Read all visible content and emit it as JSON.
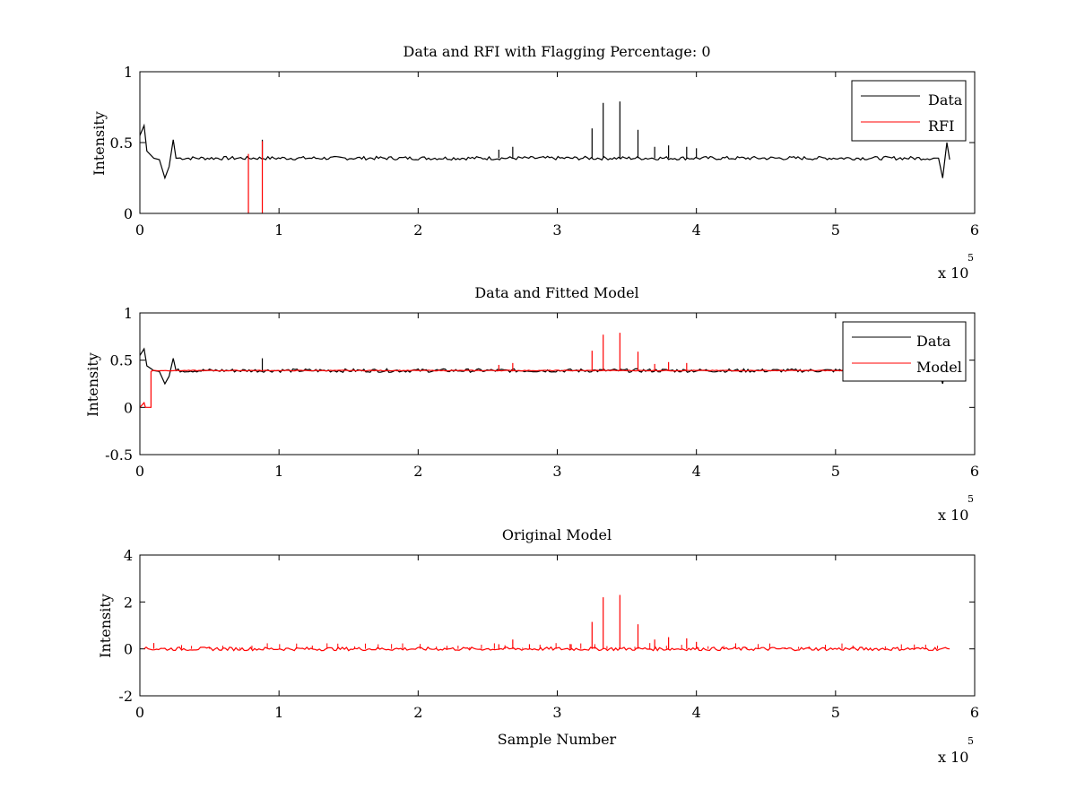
{
  "colors": {
    "data": "#000000",
    "rfi": "#ff0000",
    "model": "#ff0000",
    "axes": "#000000",
    "background": "#ffffff"
  },
  "chart_data": [
    {
      "type": "line",
      "title": "Data and RFI with Flagging Percentage: 0",
      "xlabel": "",
      "ylabel": "Intensity",
      "xlim": [
        0,
        600000
      ],
      "ylim": [
        0,
        1
      ],
      "xticks": [
        0,
        100000,
        200000,
        300000,
        400000,
        500000,
        600000
      ],
      "xtick_labels": [
        "0",
        "1",
        "2",
        "3",
        "4",
        "5",
        "6"
      ],
      "yticks": [
        0,
        0.5,
        1
      ],
      "ytick_labels": [
        "0",
        "0.5",
        "1"
      ],
      "x_multiplier": {
        "base": "x 10",
        "exponent": "5"
      },
      "legend": {
        "position": "top-right",
        "entries": [
          "Data",
          "RFI"
        ]
      },
      "series": [
        {
          "name": "Data",
          "color": "#000000",
          "baseline": 0.39,
          "features": [
            {
              "x": 0,
              "y": 0.55
            },
            {
              "x": 3000,
              "y": 0.62
            },
            {
              "x": 5000,
              "y": 0.44
            },
            {
              "x": 10000,
              "y": 0.39
            },
            {
              "x": 14000,
              "y": 0.38
            },
            {
              "x": 18000,
              "y": 0.25
            },
            {
              "x": 21000,
              "y": 0.33
            },
            {
              "x": 24000,
              "y": 0.52
            },
            {
              "x": 26000,
              "y": 0.39
            },
            {
              "x": 574000,
              "y": 0.39
            },
            {
              "x": 577000,
              "y": 0.25
            },
            {
              "x": 580000,
              "y": 0.5
            },
            {
              "x": 582000,
              "y": 0.38
            }
          ],
          "spikes": [
            {
              "x": 88000,
              "y": 0.52
            },
            {
              "x": 258000,
              "y": 0.45
            },
            {
              "x": 268000,
              "y": 0.47
            },
            {
              "x": 325000,
              "y": 0.6
            },
            {
              "x": 333000,
              "y": 0.78
            },
            {
              "x": 345000,
              "y": 0.79
            },
            {
              "x": 358000,
              "y": 0.59
            },
            {
              "x": 370000,
              "y": 0.47
            },
            {
              "x": 380000,
              "y": 0.48
            },
            {
              "x": 393000,
              "y": 0.47
            },
            {
              "x": 400000,
              "y": 0.46
            }
          ]
        },
        {
          "name": "RFI",
          "color": "#ff0000",
          "spikes": [
            {
              "x": 88000,
              "y": 0.51
            },
            {
              "x": 78000,
              "y": 0.42
            }
          ]
        }
      ]
    },
    {
      "type": "line",
      "title": "Data and Fitted Model",
      "xlabel": "",
      "ylabel": "Intensity",
      "xlim": [
        0,
        600000
      ],
      "ylim": [
        -0.5,
        1
      ],
      "xticks": [
        0,
        100000,
        200000,
        300000,
        400000,
        500000,
        600000
      ],
      "xtick_labels": [
        "0",
        "1",
        "2",
        "3",
        "4",
        "5",
        "6"
      ],
      "yticks": [
        -0.5,
        0,
        0.5,
        1
      ],
      "ytick_labels": [
        "-0.5",
        "0",
        "0.5",
        "1"
      ],
      "x_multiplier": {
        "base": "x 10",
        "exponent": "5"
      },
      "legend": {
        "position": "top-right",
        "entries": [
          "Data",
          "Model"
        ]
      },
      "series": [
        {
          "name": "Data",
          "color": "#000000",
          "baseline": 0.39,
          "features": [
            {
              "x": 0,
              "y": 0.55
            },
            {
              "x": 3000,
              "y": 0.62
            },
            {
              "x": 5000,
              "y": 0.44
            },
            {
              "x": 10000,
              "y": 0.39
            },
            {
              "x": 14000,
              "y": 0.38
            },
            {
              "x": 18000,
              "y": 0.25
            },
            {
              "x": 21000,
              "y": 0.33
            },
            {
              "x": 24000,
              "y": 0.52
            },
            {
              "x": 26000,
              "y": 0.39
            },
            {
              "x": 574000,
              "y": 0.39
            },
            {
              "x": 577000,
              "y": 0.25
            },
            {
              "x": 580000,
              "y": 0.5
            },
            {
              "x": 582000,
              "y": 0.38
            }
          ],
          "spikes": [
            {
              "x": 88000,
              "y": 0.52
            }
          ]
        },
        {
          "name": "Model",
          "color": "#ff0000",
          "baseline": 0.39,
          "features": [
            {
              "x": 0,
              "y": 0
            },
            {
              "x": 3000,
              "y": 0.05
            },
            {
              "x": 4000,
              "y": 0
            },
            {
              "x": 8000,
              "y": 0
            },
            {
              "x": 8000,
              "y": 0.38
            },
            {
              "x": 582000,
              "y": 0.38
            }
          ],
          "spikes": [
            {
              "x": 258000,
              "y": 0.45
            },
            {
              "x": 268000,
              "y": 0.47
            },
            {
              "x": 325000,
              "y": 0.6
            },
            {
              "x": 333000,
              "y": 0.77
            },
            {
              "x": 345000,
              "y": 0.79
            },
            {
              "x": 358000,
              "y": 0.59
            },
            {
              "x": 370000,
              "y": 0.46
            },
            {
              "x": 380000,
              "y": 0.48
            },
            {
              "x": 393000,
              "y": 0.47
            }
          ]
        }
      ]
    },
    {
      "type": "line",
      "title": "Original Model",
      "xlabel": "Sample Number",
      "ylabel": "Intensity",
      "xlim": [
        0,
        600000
      ],
      "ylim": [
        -2,
        4
      ],
      "xticks": [
        0,
        100000,
        200000,
        300000,
        400000,
        500000,
        600000
      ],
      "xtick_labels": [
        "0",
        "1",
        "2",
        "3",
        "4",
        "5",
        "6"
      ],
      "yticks": [
        -2,
        0,
        2,
        4
      ],
      "ytick_labels": [
        "-2",
        "0",
        "2",
        "4"
      ],
      "x_multiplier": {
        "base": "x 10",
        "exponent": "5"
      },
      "series": [
        {
          "name": "Original Model",
          "color": "#ff0000",
          "baseline": 0,
          "features": [
            {
              "x": 3000,
              "y": 0
            },
            {
              "x": 582000,
              "y": 0
            }
          ],
          "spikes": [
            {
              "x": 10000,
              "y": 0.25
            },
            {
              "x": 258000,
              "y": 0.2
            },
            {
              "x": 268000,
              "y": 0.4
            },
            {
              "x": 280000,
              "y": 0.2
            },
            {
              "x": 310000,
              "y": 0.2
            },
            {
              "x": 325000,
              "y": 1.15
            },
            {
              "x": 333000,
              "y": 2.2
            },
            {
              "x": 345000,
              "y": 2.3
            },
            {
              "x": 358000,
              "y": 1.05
            },
            {
              "x": 370000,
              "y": 0.4
            },
            {
              "x": 380000,
              "y": 0.5
            },
            {
              "x": 393000,
              "y": 0.45
            },
            {
              "x": 400000,
              "y": 0.3
            }
          ]
        }
      ]
    }
  ]
}
